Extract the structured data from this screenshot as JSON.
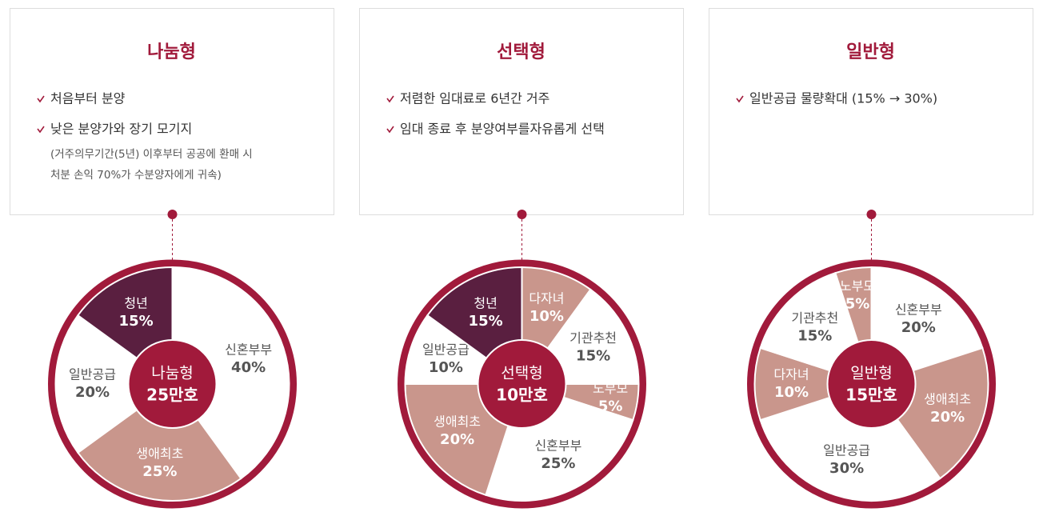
{
  "cards": [
    {
      "title": "나눔형",
      "items": [
        "처음부터 분양",
        "낮은 분양가와 장기 모기지"
      ],
      "note": [
        "(거주의무기간(5년) 이후부터 공공에 환매 시",
        "처분 손익 70%가 수분양자에게 귀속)"
      ]
    },
    {
      "title": "선택형",
      "items": [
        "저렴한 임대료로 6년간 거주",
        "임대 종료 후 분양여부를자유롭게 선택"
      ]
    },
    {
      "title": "일반형",
      "items": [
        "일반공급 물량확대 (15% → 30%)"
      ]
    }
  ],
  "chart_data": [
    {
      "type": "pie",
      "center_label": "나눔형",
      "center_value": "25만호",
      "categories": [
        "신혼부부",
        "생애최초",
        "일반공급",
        "청년"
      ],
      "values": [
        40,
        25,
        20,
        15
      ],
      "value_labels": [
        "40%",
        "25%",
        "20%",
        "15%"
      ],
      "colors": [
        "#ffffff",
        "#c9968c",
        "#ffffff",
        "#5a1f40"
      ]
    },
    {
      "type": "pie",
      "center_label": "선택형",
      "center_value": "10만호",
      "categories": [
        "다자녀",
        "기관추천",
        "노부모",
        "신혼부부",
        "생애최초",
        "일반공급",
        "청년"
      ],
      "values": [
        10,
        15,
        5,
        25,
        20,
        10,
        15
      ],
      "value_labels": [
        "10%",
        "15%",
        "5%",
        "25%",
        "20%",
        "10%",
        "15%"
      ],
      "colors": [
        "#c9968c",
        "#ffffff",
        "#c9968c",
        "#ffffff",
        "#c9968c",
        "#ffffff",
        "#5a1f40"
      ]
    },
    {
      "type": "pie",
      "center_label": "일반형",
      "center_value": "15만호",
      "categories": [
        "신혼부부",
        "생애최초",
        "일반공급",
        "다자녀",
        "기관추천",
        "노부모"
      ],
      "values": [
        20,
        20,
        30,
        10,
        15,
        5
      ],
      "value_labels": [
        "20%",
        "20%",
        "30%",
        "10%",
        "15%",
        "5%"
      ],
      "colors": [
        "#ffffff",
        "#c9968c",
        "#ffffff",
        "#c9968c",
        "#ffffff",
        "#c9968c"
      ]
    }
  ]
}
